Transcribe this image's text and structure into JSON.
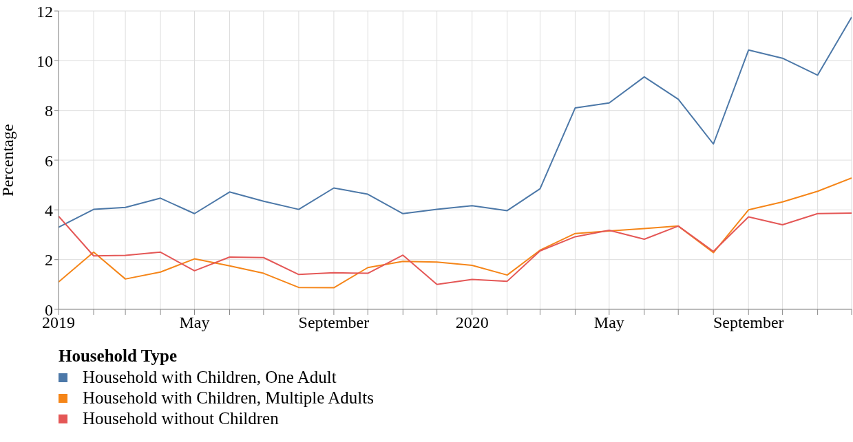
{
  "chart_data": {
    "type": "line",
    "ylabel": "Percentage",
    "legend_title": "Household Type",
    "legend": "bottom left",
    "grid": true,
    "x": [
      "2019-01",
      "2019-02",
      "2019-03",
      "2019-04",
      "2019-05",
      "2019-06",
      "2019-07",
      "2019-08",
      "2019-09",
      "2019-10",
      "2019-11",
      "2019-12",
      "2020-01",
      "2020-02",
      "2020-03",
      "2020-04",
      "2020-05",
      "2020-06",
      "2020-07",
      "2020-08",
      "2020-09",
      "2020-10",
      "2020-11",
      "2020-12"
    ],
    "xlim": [
      "2019-01",
      "2020-12"
    ],
    "xticks": [
      {
        "value": "2019-01",
        "label": "2019"
      },
      {
        "value": "2019-02",
        "label": null
      },
      {
        "value": "2019-03",
        "label": null
      },
      {
        "value": "2019-04",
        "label": null
      },
      {
        "value": "2019-05",
        "label": "May"
      },
      {
        "value": "2019-06",
        "label": null
      },
      {
        "value": "2019-07",
        "label": null
      },
      {
        "value": "2019-08",
        "label": null
      },
      {
        "value": "2019-09",
        "label": "September"
      },
      {
        "value": "2019-10",
        "label": null
      },
      {
        "value": "2019-11",
        "label": null
      },
      {
        "value": "2019-12",
        "label": null
      },
      {
        "value": "2020-01",
        "label": "2020"
      },
      {
        "value": "2020-02",
        "label": null
      },
      {
        "value": "2020-03",
        "label": null
      },
      {
        "value": "2020-04",
        "label": null
      },
      {
        "value": "2020-05",
        "label": "May"
      },
      {
        "value": "2020-06",
        "label": null
      },
      {
        "value": "2020-07",
        "label": null
      },
      {
        "value": "2020-08",
        "label": null
      },
      {
        "value": "2020-09",
        "label": "September"
      },
      {
        "value": "2020-10",
        "label": null
      },
      {
        "value": "2020-11",
        "label": null
      },
      {
        "value": "2020-12",
        "label": null
      }
    ],
    "ylim": [
      0,
      12
    ],
    "yticks": [
      0,
      2,
      4,
      6,
      8,
      10,
      12
    ],
    "series": [
      {
        "name": "Household with Children, One Adult",
        "color": "#4c78a8",
        "values": [
          3.3,
          4.02,
          4.1,
          4.47,
          3.85,
          4.72,
          4.35,
          4.02,
          4.88,
          4.63,
          3.85,
          4.02,
          4.17,
          3.97,
          4.85,
          8.1,
          8.3,
          9.35,
          8.45,
          6.65,
          10.43,
          10.1,
          9.42,
          11.75
        ]
      },
      {
        "name": "Household with Children, Multiple Adults",
        "color": "#f58518",
        "values": [
          1.1,
          2.3,
          1.22,
          1.5,
          2.03,
          1.75,
          1.45,
          0.88,
          0.87,
          1.68,
          1.93,
          1.9,
          1.77,
          1.38,
          2.38,
          3.05,
          3.15,
          3.25,
          3.35,
          2.28,
          4.0,
          4.32,
          4.75,
          5.28
        ]
      },
      {
        "name": "Household without Children",
        "color": "#e45756",
        "values": [
          3.75,
          2.15,
          2.17,
          2.3,
          1.55,
          2.1,
          2.08,
          1.4,
          1.47,
          1.45,
          2.18,
          1.0,
          1.2,
          1.13,
          2.35,
          2.92,
          3.18,
          2.82,
          3.35,
          2.33,
          3.72,
          3.4,
          3.85,
          3.87
        ]
      }
    ]
  }
}
